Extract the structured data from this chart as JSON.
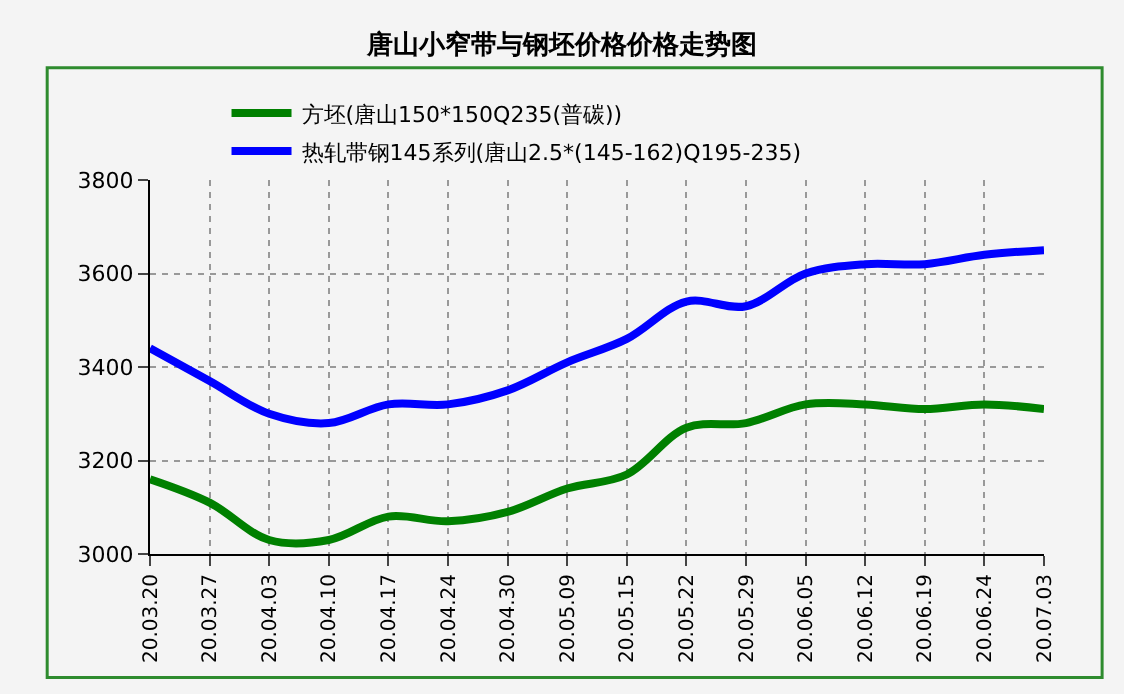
{
  "chart_data": {
    "type": "line",
    "title": "唐山小窄带与钢坯价格价格走势图",
    "categories": [
      "20.03.20",
      "20.03.27",
      "20.04.03",
      "20.04.10",
      "20.04.17",
      "20.04.24",
      "20.04.30",
      "20.05.09",
      "20.05.15",
      "20.05.22",
      "20.05.29",
      "20.06.05",
      "20.06.12",
      "20.06.19",
      "20.06.24",
      "20.07.03"
    ],
    "series": [
      {
        "name": "方坯(唐山150*150Q235(普碳))",
        "color": "#008000",
        "values": [
          3160,
          3110,
          3030,
          3030,
          3080,
          3070,
          3090,
          3140,
          3170,
          3270,
          3280,
          3320,
          3320,
          3310,
          3320,
          3310
        ]
      },
      {
        "name": "热轧带钢145系列(唐山2.5*(145-162)Q195-235)",
        "color": "#0000ff",
        "values": [
          3440,
          3370,
          3300,
          3280,
          3320,
          3320,
          3350,
          3410,
          3460,
          3540,
          3530,
          3600,
          3620,
          3620,
          3640,
          3650
        ]
      }
    ],
    "ylim": [
      3000,
      3800
    ],
    "yticks": [
      3000,
      3200,
      3400,
      3600,
      3800
    ],
    "grid": true,
    "legend": "top",
    "marker": "none",
    "line_style": "solid"
  }
}
